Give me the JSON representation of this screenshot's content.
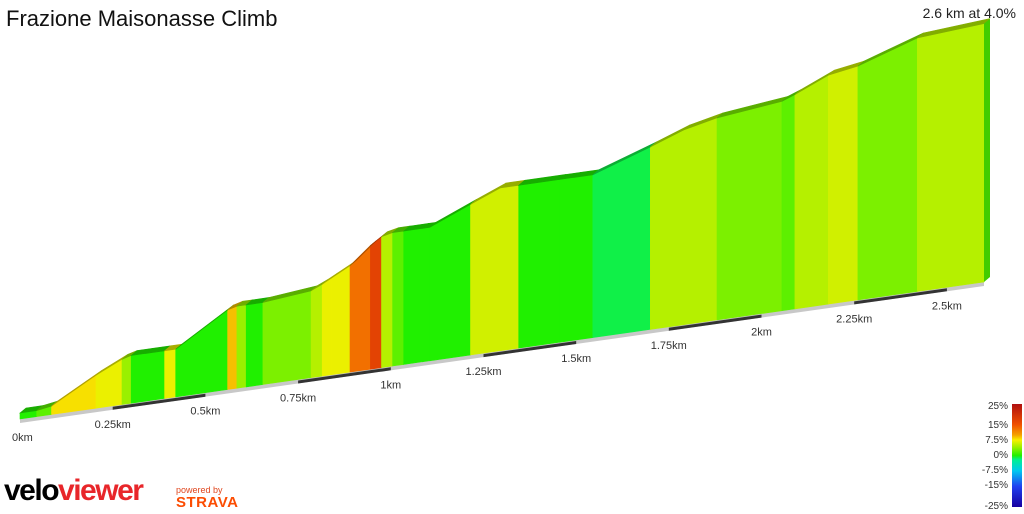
{
  "title": "Frazione Maisonasse Climb",
  "summary": "2.6 km at 4.0%",
  "brand": {
    "velo": "velo",
    "viewer": "viewer",
    "powered_by": "powered by",
    "strava": "STRAVA"
  },
  "chart_data": {
    "type": "area",
    "xlabel": "",
    "ylabel": "",
    "x_unit": "km",
    "xlim": [
      0,
      2.6
    ],
    "x_ticks": [
      {
        "x": 0,
        "label": "0km"
      },
      {
        "x": 0.25,
        "label": "0.25km"
      },
      {
        "x": 0.5,
        "label": "0.5km"
      },
      {
        "x": 0.75,
        "label": "0.75km"
      },
      {
        "x": 1.0,
        "label": "1km"
      },
      {
        "x": 1.25,
        "label": "1.25km"
      },
      {
        "x": 1.5,
        "label": "1.5km"
      },
      {
        "x": 1.75,
        "label": "1.75km"
      },
      {
        "x": 2.0,
        "label": "2km"
      },
      {
        "x": 2.25,
        "label": "2.25km"
      },
      {
        "x": 2.5,
        "label": "2.5km"
      }
    ],
    "ylim": [
      0,
      105
    ],
    "profile": [
      {
        "x": 0.0,
        "y": 0
      },
      {
        "x": 0.045,
        "y": 0
      },
      {
        "x": 0.085,
        "y": 1
      },
      {
        "x": 0.205,
        "y": 11
      },
      {
        "x": 0.275,
        "y": 16
      },
      {
        "x": 0.3,
        "y": 17
      },
      {
        "x": 0.34,
        "y": 17
      },
      {
        "x": 0.39,
        "y": 17
      },
      {
        "x": 0.42,
        "y": 17
      },
      {
        "x": 0.56,
        "y": 30
      },
      {
        "x": 0.585,
        "y": 31
      },
      {
        "x": 0.61,
        "y": 31
      },
      {
        "x": 0.655,
        "y": 31
      },
      {
        "x": 0.785,
        "y": 33
      },
      {
        "x": 0.815,
        "y": 35
      },
      {
        "x": 0.84,
        "y": 37
      },
      {
        "x": 0.89,
        "y": 41
      },
      {
        "x": 0.945,
        "y": 48
      },
      {
        "x": 0.975,
        "y": 51
      },
      {
        "x": 1.005,
        "y": 52
      },
      {
        "x": 1.035,
        "y": 52
      },
      {
        "x": 1.085,
        "y": 52
      },
      {
        "x": 1.105,
        "y": 52
      },
      {
        "x": 1.215,
        "y": 59
      },
      {
        "x": 1.295,
        "y": 64
      },
      {
        "x": 1.345,
        "y": 64
      },
      {
        "x": 1.455,
        "y": 64
      },
      {
        "x": 1.495,
        "y": 64
      },
      {
        "x": 1.545,
        "y": 64
      },
      {
        "x": 1.7,
        "y": 72
      },
      {
        "x": 1.79,
        "y": 77
      },
      {
        "x": 1.88,
        "y": 80
      },
      {
        "x": 2.055,
        "y": 83
      },
      {
        "x": 2.09,
        "y": 85
      },
      {
        "x": 2.18,
        "y": 91
      },
      {
        "x": 2.26,
        "y": 93
      },
      {
        "x": 2.42,
        "y": 101
      },
      {
        "x": 2.6,
        "y": 103
      }
    ],
    "gradient_percent": [
      0.1,
      2,
      8,
      7,
      4,
      0,
      0,
      7,
      0,
      9,
      4,
      0,
      3,
      5,
      7,
      7,
      13,
      17,
      5,
      2,
      0,
      0,
      0,
      6,
      6,
      0,
      0,
      0,
      -1,
      5,
      5,
      3,
      2,
      5,
      6,
      3,
      5,
      1.5
    ],
    "color_scale": {
      "ticks": [
        "25%",
        "15%",
        "7.5%",
        "0%",
        "-7.5%",
        "-15%",
        "-25%"
      ],
      "stops": [
        {
          "value": 25,
          "color": "#b01010"
        },
        {
          "value": 15,
          "color": "#f05000"
        },
        {
          "value": 10,
          "color": "#f5a000"
        },
        {
          "value": 7.5,
          "color": "#f8f000"
        },
        {
          "value": 4,
          "color": "#9af000"
        },
        {
          "value": 0,
          "color": "#20f000"
        },
        {
          "value": -2,
          "color": "#00f090"
        },
        {
          "value": -7.5,
          "color": "#00c8f0"
        },
        {
          "value": -15,
          "color": "#2040f0"
        },
        {
          "value": -25,
          "color": "#1800a0"
        }
      ]
    }
  }
}
